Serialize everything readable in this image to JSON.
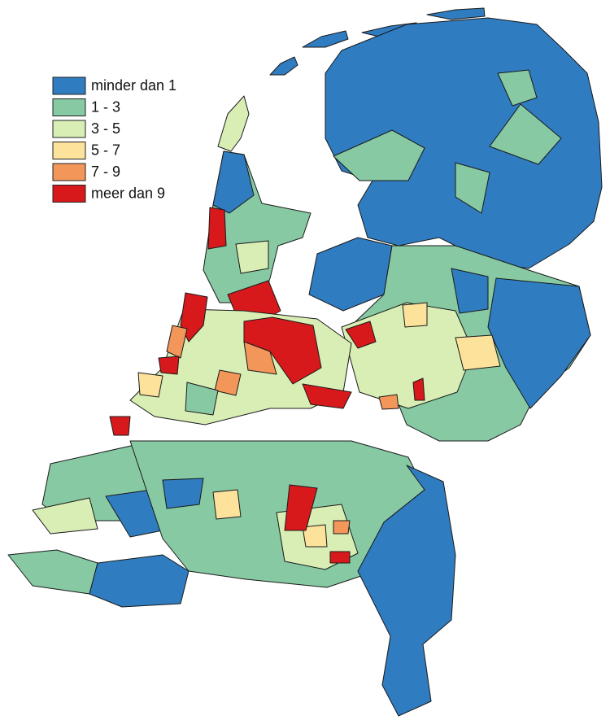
{
  "legend": {
    "items": [
      {
        "label": "minder dan 1",
        "color": "#2f7cc0"
      },
      {
        "label": "1 - 3",
        "color": "#86c9a3"
      },
      {
        "label": "3 - 5",
        "color": "#d8eeb4"
      },
      {
        "label": "5 - 7",
        "color": "#fde29c"
      },
      {
        "label": "7 - 9",
        "color": "#f3965a"
      },
      {
        "label": "meer dan 9",
        "color": "#d7191c"
      }
    ]
  }
}
